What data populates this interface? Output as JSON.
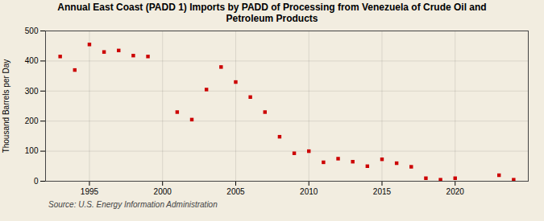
{
  "chart_data": {
    "type": "scatter",
    "title": "Annual East Coast (PADD 1) Imports by PADD of Processing from Venezuela of Crude Oil and\nPetroleum Products",
    "ylabel": "Thousand Barrels per Day",
    "source": "Source: U.S. Energy Information Administration",
    "x": [
      1993,
      1994,
      1995,
      1996,
      1997,
      1998,
      1999,
      2001,
      2002,
      2003,
      2004,
      2005,
      2006,
      2007,
      2008,
      2009,
      2010,
      2011,
      2012,
      2013,
      2014,
      2015,
      2016,
      2017,
      2018,
      2019,
      2020,
      2023,
      2024
    ],
    "values": [
      415,
      370,
      455,
      430,
      435,
      418,
      415,
      230,
      205,
      305,
      380,
      330,
      280,
      230,
      148,
      93,
      100,
      63,
      75,
      65,
      50,
      73,
      60,
      48,
      10,
      5,
      10,
      20,
      5
    ],
    "color": "#cc0000",
    "marker": "square",
    "xlim": [
      1992,
      2025
    ],
    "ylim": [
      0,
      500
    ],
    "xticks": [
      1995,
      2000,
      2005,
      2010,
      2015,
      2020
    ],
    "yticks": [
      0,
      100,
      200,
      300,
      400,
      500
    ],
    "grid": true
  }
}
